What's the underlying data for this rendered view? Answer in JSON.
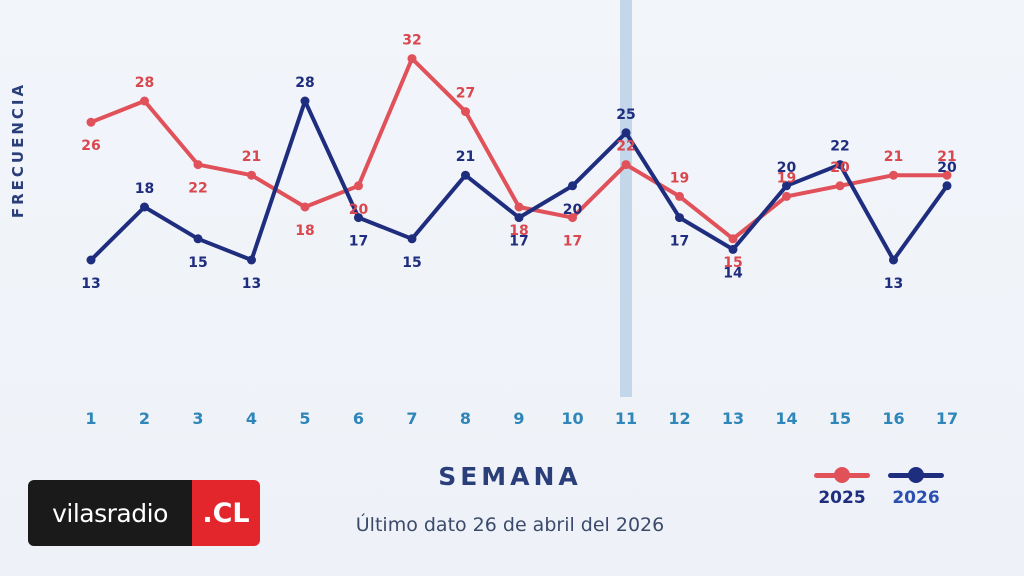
{
  "chart_data": {
    "type": "line",
    "title": "",
    "xlabel": "SEMANA",
    "ylabel": "FRECUENCIA",
    "categories": [
      "1",
      "2",
      "3",
      "4",
      "5",
      "6",
      "7",
      "8",
      "9",
      "10",
      "11",
      "12",
      "13",
      "14",
      "15",
      "16",
      "17"
    ],
    "series": [
      {
        "name": "2025",
        "color": "#e0515a",
        "values": [
          26,
          28,
          22,
          21,
          18,
          20,
          32,
          27,
          18,
          17,
          22,
          19,
          15,
          19,
          20,
          21,
          21
        ]
      },
      {
        "name": "2026",
        "color": "#1f2d7e",
        "values": [
          13,
          18,
          15,
          13,
          28,
          17,
          15,
          21,
          17,
          20,
          25,
          17,
          14,
          20,
          22,
          13,
          20
        ]
      }
    ],
    "highlight_category": "11",
    "grid": false,
    "legend_position": "bottom-right"
  },
  "footnote": "Último dato 26 de abril del 2026",
  "logo": {
    "left_text": "vilasradio",
    "right_text": ".CL"
  }
}
